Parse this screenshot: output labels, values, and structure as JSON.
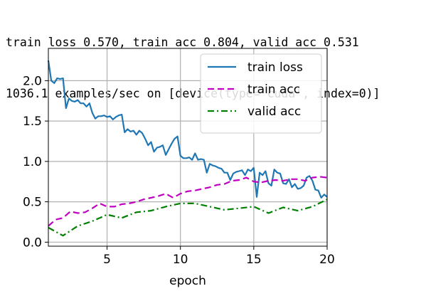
{
  "console": {
    "line1": "train loss 0.570, train acc 0.804, valid acc 0.531",
    "line2": "1036.1 examples/sec on [device(type='cuda', index=0)]"
  },
  "chart_data": {
    "type": "line",
    "xlabel": "epoch",
    "ylabel": "",
    "xlim": [
      1,
      20
    ],
    "ylim": [
      -0.05,
      2.4
    ],
    "x_ticks": [
      5,
      10,
      15,
      20
    ],
    "y_ticks": [
      0.0,
      0.5,
      1.0,
      1.5,
      2.0
    ],
    "x_tick_labels": [
      "5",
      "10",
      "15",
      "20"
    ],
    "y_tick_labels": [
      "0.0",
      "0.5",
      "1.0",
      "1.5",
      "2.0"
    ],
    "grid": true,
    "legend_position": "top-right",
    "series": [
      {
        "name": "train loss",
        "color": "#1f77b4",
        "style": "solid",
        "x": [
          1.0,
          1.2,
          1.4,
          1.6,
          1.8,
          2.0,
          2.2,
          2.4,
          2.6,
          2.8,
          3.0,
          3.2,
          3.4,
          3.6,
          3.8,
          4.0,
          4.2,
          4.4,
          4.6,
          4.8,
          5.0,
          5.2,
          5.4,
          5.6,
          5.8,
          6.0,
          6.2,
          6.4,
          6.6,
          6.8,
          7.0,
          7.2,
          7.4,
          7.6,
          7.8,
          8.0,
          8.2,
          8.4,
          8.6,
          8.8,
          9.0,
          9.2,
          9.4,
          9.6,
          9.8,
          10.0,
          10.2,
          10.4,
          10.6,
          10.8,
          11.0,
          11.2,
          11.4,
          11.6,
          11.8,
          12.0,
          12.2,
          12.4,
          12.6,
          12.8,
          13.0,
          13.2,
          13.4,
          13.6,
          13.8,
          14.0,
          14.2,
          14.4,
          14.6,
          14.8,
          15.0,
          15.2,
          15.4,
          15.6,
          15.8,
          16.0,
          16.2,
          16.4,
          16.6,
          16.8,
          17.0,
          17.2,
          17.4,
          17.6,
          17.8,
          18.0,
          18.2,
          18.4,
          18.6,
          18.8,
          19.0,
          19.2,
          19.4,
          19.6,
          19.8,
          20.0
        ],
        "values": [
          2.25,
          2.0,
          1.97,
          2.03,
          2.02,
          2.03,
          1.66,
          1.78,
          1.75,
          1.74,
          1.76,
          1.72,
          1.72,
          1.68,
          1.72,
          1.6,
          1.53,
          1.56,
          1.56,
          1.57,
          1.55,
          1.56,
          1.52,
          1.55,
          1.57,
          1.58,
          1.36,
          1.4,
          1.37,
          1.38,
          1.33,
          1.38,
          1.35,
          1.28,
          1.2,
          1.24,
          1.12,
          1.17,
          1.18,
          1.2,
          1.08,
          1.15,
          1.22,
          1.28,
          1.31,
          1.07,
          1.04,
          1.04,
          1.05,
          1.02,
          1.1,
          1.02,
          1.03,
          1.02,
          0.86,
          0.97,
          0.95,
          0.94,
          0.92,
          0.91,
          0.86,
          0.86,
          0.77,
          0.85,
          0.87,
          0.88,
          0.89,
          0.83,
          0.9,
          0.88,
          0.92,
          0.56,
          0.86,
          0.83,
          0.88,
          0.73,
          0.7,
          0.9,
          0.86,
          0.85,
          0.73,
          0.72,
          0.78,
          0.68,
          0.72,
          0.66,
          0.67,
          0.7,
          0.8,
          0.82,
          0.76,
          0.65,
          0.64,
          0.55,
          0.59,
          0.56
        ]
      },
      {
        "name": "train acc",
        "color": "#bf00bf",
        "style": "dashed",
        "x": [
          1.0,
          1.5,
          2.0,
          2.5,
          3.0,
          3.5,
          4.0,
          4.5,
          5.0,
          5.5,
          6.0,
          6.5,
          7.0,
          7.5,
          8.0,
          8.5,
          9.0,
          9.5,
          10.0,
          10.5,
          11.0,
          11.5,
          12.0,
          12.5,
          13.0,
          13.5,
          14.0,
          14.5,
          15.0,
          15.5,
          16.0,
          16.5,
          17.0,
          17.5,
          18.0,
          18.5,
          19.0,
          19.5,
          20.0
        ],
        "values": [
          0.2,
          0.28,
          0.3,
          0.38,
          0.36,
          0.37,
          0.42,
          0.48,
          0.44,
          0.44,
          0.47,
          0.48,
          0.5,
          0.53,
          0.55,
          0.57,
          0.6,
          0.55,
          0.6,
          0.63,
          0.64,
          0.66,
          0.68,
          0.71,
          0.72,
          0.76,
          0.77,
          0.8,
          0.75,
          0.74,
          0.76,
          0.77,
          0.76,
          0.78,
          0.78,
          0.76,
          0.8,
          0.81,
          0.8
        ]
      },
      {
        "name": "valid acc",
        "color": "#008000",
        "style": "dashdot",
        "x": [
          1,
          2,
          3,
          4,
          5,
          6,
          7,
          8,
          9,
          10,
          11,
          12,
          13,
          14,
          15,
          16,
          17,
          18,
          19,
          20
        ],
        "values": [
          0.18,
          0.08,
          0.2,
          0.26,
          0.34,
          0.3,
          0.37,
          0.39,
          0.44,
          0.48,
          0.48,
          0.44,
          0.4,
          0.42,
          0.44,
          0.36,
          0.43,
          0.39,
          0.44,
          0.53
        ]
      }
    ]
  }
}
